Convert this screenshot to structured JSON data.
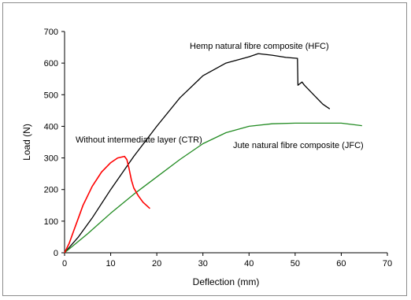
{
  "chart_data": {
    "type": "line",
    "title": "",
    "xlabel": "Deflection (mm)",
    "ylabel": "Load (N)",
    "xlim": [
      0,
      70
    ],
    "ylim": [
      0,
      700
    ],
    "xticks": [
      "0",
      "10",
      "20",
      "30",
      "40",
      "50",
      "60",
      "70"
    ],
    "yticks": [
      "0",
      "100",
      "200",
      "300",
      "400",
      "500",
      "600",
      "700"
    ],
    "grid": false,
    "series": [
      {
        "name": "Hemp natural fibre composite (HFC)",
        "color": "#000000",
        "points": [
          [
            0,
            0
          ],
          [
            3,
            50
          ],
          [
            6,
            110
          ],
          [
            10,
            200
          ],
          [
            15,
            305
          ],
          [
            20,
            400
          ],
          [
            25,
            490
          ],
          [
            30,
            560
          ],
          [
            35,
            600
          ],
          [
            40,
            620
          ],
          [
            42,
            630
          ],
          [
            45,
            625
          ],
          [
            48,
            618
          ],
          [
            50.5,
            615
          ],
          [
            50.6,
            530
          ],
          [
            51.5,
            540
          ],
          [
            52,
            530
          ],
          [
            54,
            500
          ],
          [
            56,
            470
          ],
          [
            57.5,
            455
          ]
        ]
      },
      {
        "name": "Jute natural fibre composite (JFC)",
        "color": "#228b22",
        "points": [
          [
            0,
            0
          ],
          [
            5,
            60
          ],
          [
            10,
            125
          ],
          [
            15,
            185
          ],
          [
            20,
            240
          ],
          [
            25,
            295
          ],
          [
            30,
            345
          ],
          [
            35,
            380
          ],
          [
            40,
            400
          ],
          [
            45,
            408
          ],
          [
            50,
            410
          ],
          [
            55,
            410
          ],
          [
            60,
            410
          ],
          [
            64.5,
            402
          ]
        ]
      },
      {
        "name": "Without intermediate layer (CTR)",
        "color": "#ff0000",
        "points": [
          [
            0,
            0
          ],
          [
            1,
            30
          ],
          [
            2,
            70
          ],
          [
            3,
            110
          ],
          [
            4,
            150
          ],
          [
            5,
            180
          ],
          [
            6,
            210
          ],
          [
            8,
            255
          ],
          [
            10,
            285
          ],
          [
            11.5,
            300
          ],
          [
            13,
            305
          ],
          [
            13.5,
            295
          ],
          [
            14,
            265
          ],
          [
            14.5,
            230
          ],
          [
            15,
            205
          ],
          [
            16,
            180
          ],
          [
            17,
            160
          ],
          [
            18.5,
            140
          ]
        ]
      }
    ],
    "annotations": [
      "Hemp natural fibre composite (HFC)",
      "Without intermediate layer (CTR)",
      "Jute natural fibre composite (JFC)"
    ]
  }
}
